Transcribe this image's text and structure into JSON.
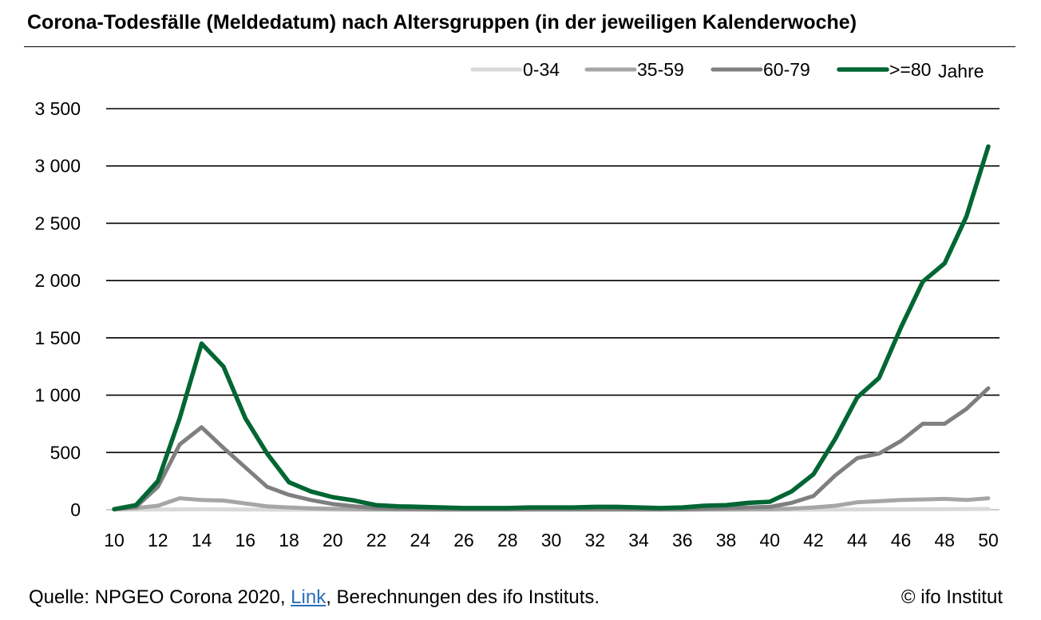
{
  "header": {
    "title": "Corona-Todesfälle (Meldedatum) nach Altersgruppen (in der jeweiligen Kalenderwoche)"
  },
  "footer": {
    "source_prefix": "Quelle: NPGEO Corona 2020, ",
    "link_label": "Link",
    "source_suffix": ", Berechnungen des ifo Instituts.",
    "copyright": "© ifo Institut"
  },
  "chart_data": {
    "type": "line",
    "title": "",
    "xlabel": "",
    "ylabel": "",
    "x": [
      10,
      11,
      12,
      13,
      14,
      15,
      16,
      17,
      18,
      19,
      20,
      21,
      22,
      23,
      24,
      25,
      26,
      27,
      28,
      29,
      30,
      31,
      32,
      33,
      34,
      35,
      36,
      37,
      38,
      39,
      40,
      41,
      42,
      43,
      44,
      45,
      46,
      47,
      48,
      49,
      50
    ],
    "x_tick_labels": [
      "10",
      "12",
      "14",
      "16",
      "18",
      "20",
      "22",
      "24",
      "26",
      "28",
      "30",
      "32",
      "34",
      "36",
      "38",
      "40",
      "42",
      "44",
      "46",
      "48",
      "50"
    ],
    "y_tick_labels": [
      "0",
      "500",
      "1 000",
      "1 500",
      "2 000",
      "2 500",
      "3 000",
      "3 500"
    ],
    "xlim": [
      10,
      50
    ],
    "ylim": [
      0,
      3500
    ],
    "grid": "horizontal",
    "legend_position": "top-right",
    "legend_suffix": "Jahre",
    "series": [
      {
        "name": "0-34",
        "color": "#d9d9d9",
        "values": [
          0,
          1,
          2,
          3,
          4,
          3,
          2,
          1,
          1,
          1,
          0,
          0,
          0,
          0,
          0,
          0,
          0,
          0,
          0,
          0,
          0,
          0,
          0,
          0,
          0,
          0,
          0,
          0,
          0,
          0,
          0,
          0,
          1,
          2,
          3,
          4,
          4,
          5,
          5,
          6,
          7
        ]
      },
      {
        "name": "35-59",
        "color": "#a6a6a6",
        "values": [
          5,
          15,
          35,
          100,
          85,
          80,
          55,
          30,
          20,
          12,
          8,
          5,
          3,
          2,
          2,
          1,
          1,
          1,
          1,
          1,
          1,
          1,
          1,
          1,
          1,
          1,
          1,
          2,
          3,
          4,
          5,
          10,
          20,
          35,
          65,
          75,
          85,
          90,
          95,
          85,
          100
        ]
      },
      {
        "name": "60-79",
        "color": "#7f7f7f",
        "values": [
          5,
          25,
          200,
          570,
          720,
          540,
          370,
          200,
          130,
          85,
          50,
          30,
          15,
          10,
          8,
          6,
          5,
          5,
          5,
          6,
          6,
          6,
          7,
          6,
          5,
          5,
          6,
          10,
          15,
          20,
          25,
          60,
          120,
          300,
          450,
          490,
          600,
          750,
          750,
          880,
          1060
        ]
      },
      {
        "name": ">=80",
        "color": "#006633",
        "values": [
          5,
          40,
          250,
          800,
          1450,
          1250,
          800,
          490,
          240,
          160,
          110,
          80,
          40,
          30,
          25,
          20,
          15,
          15,
          15,
          20,
          20,
          20,
          25,
          25,
          20,
          15,
          20,
          35,
          40,
          60,
          70,
          160,
          310,
          620,
          980,
          1150,
          1590,
          1990,
          2150,
          2560,
          3170
        ]
      }
    ]
  }
}
